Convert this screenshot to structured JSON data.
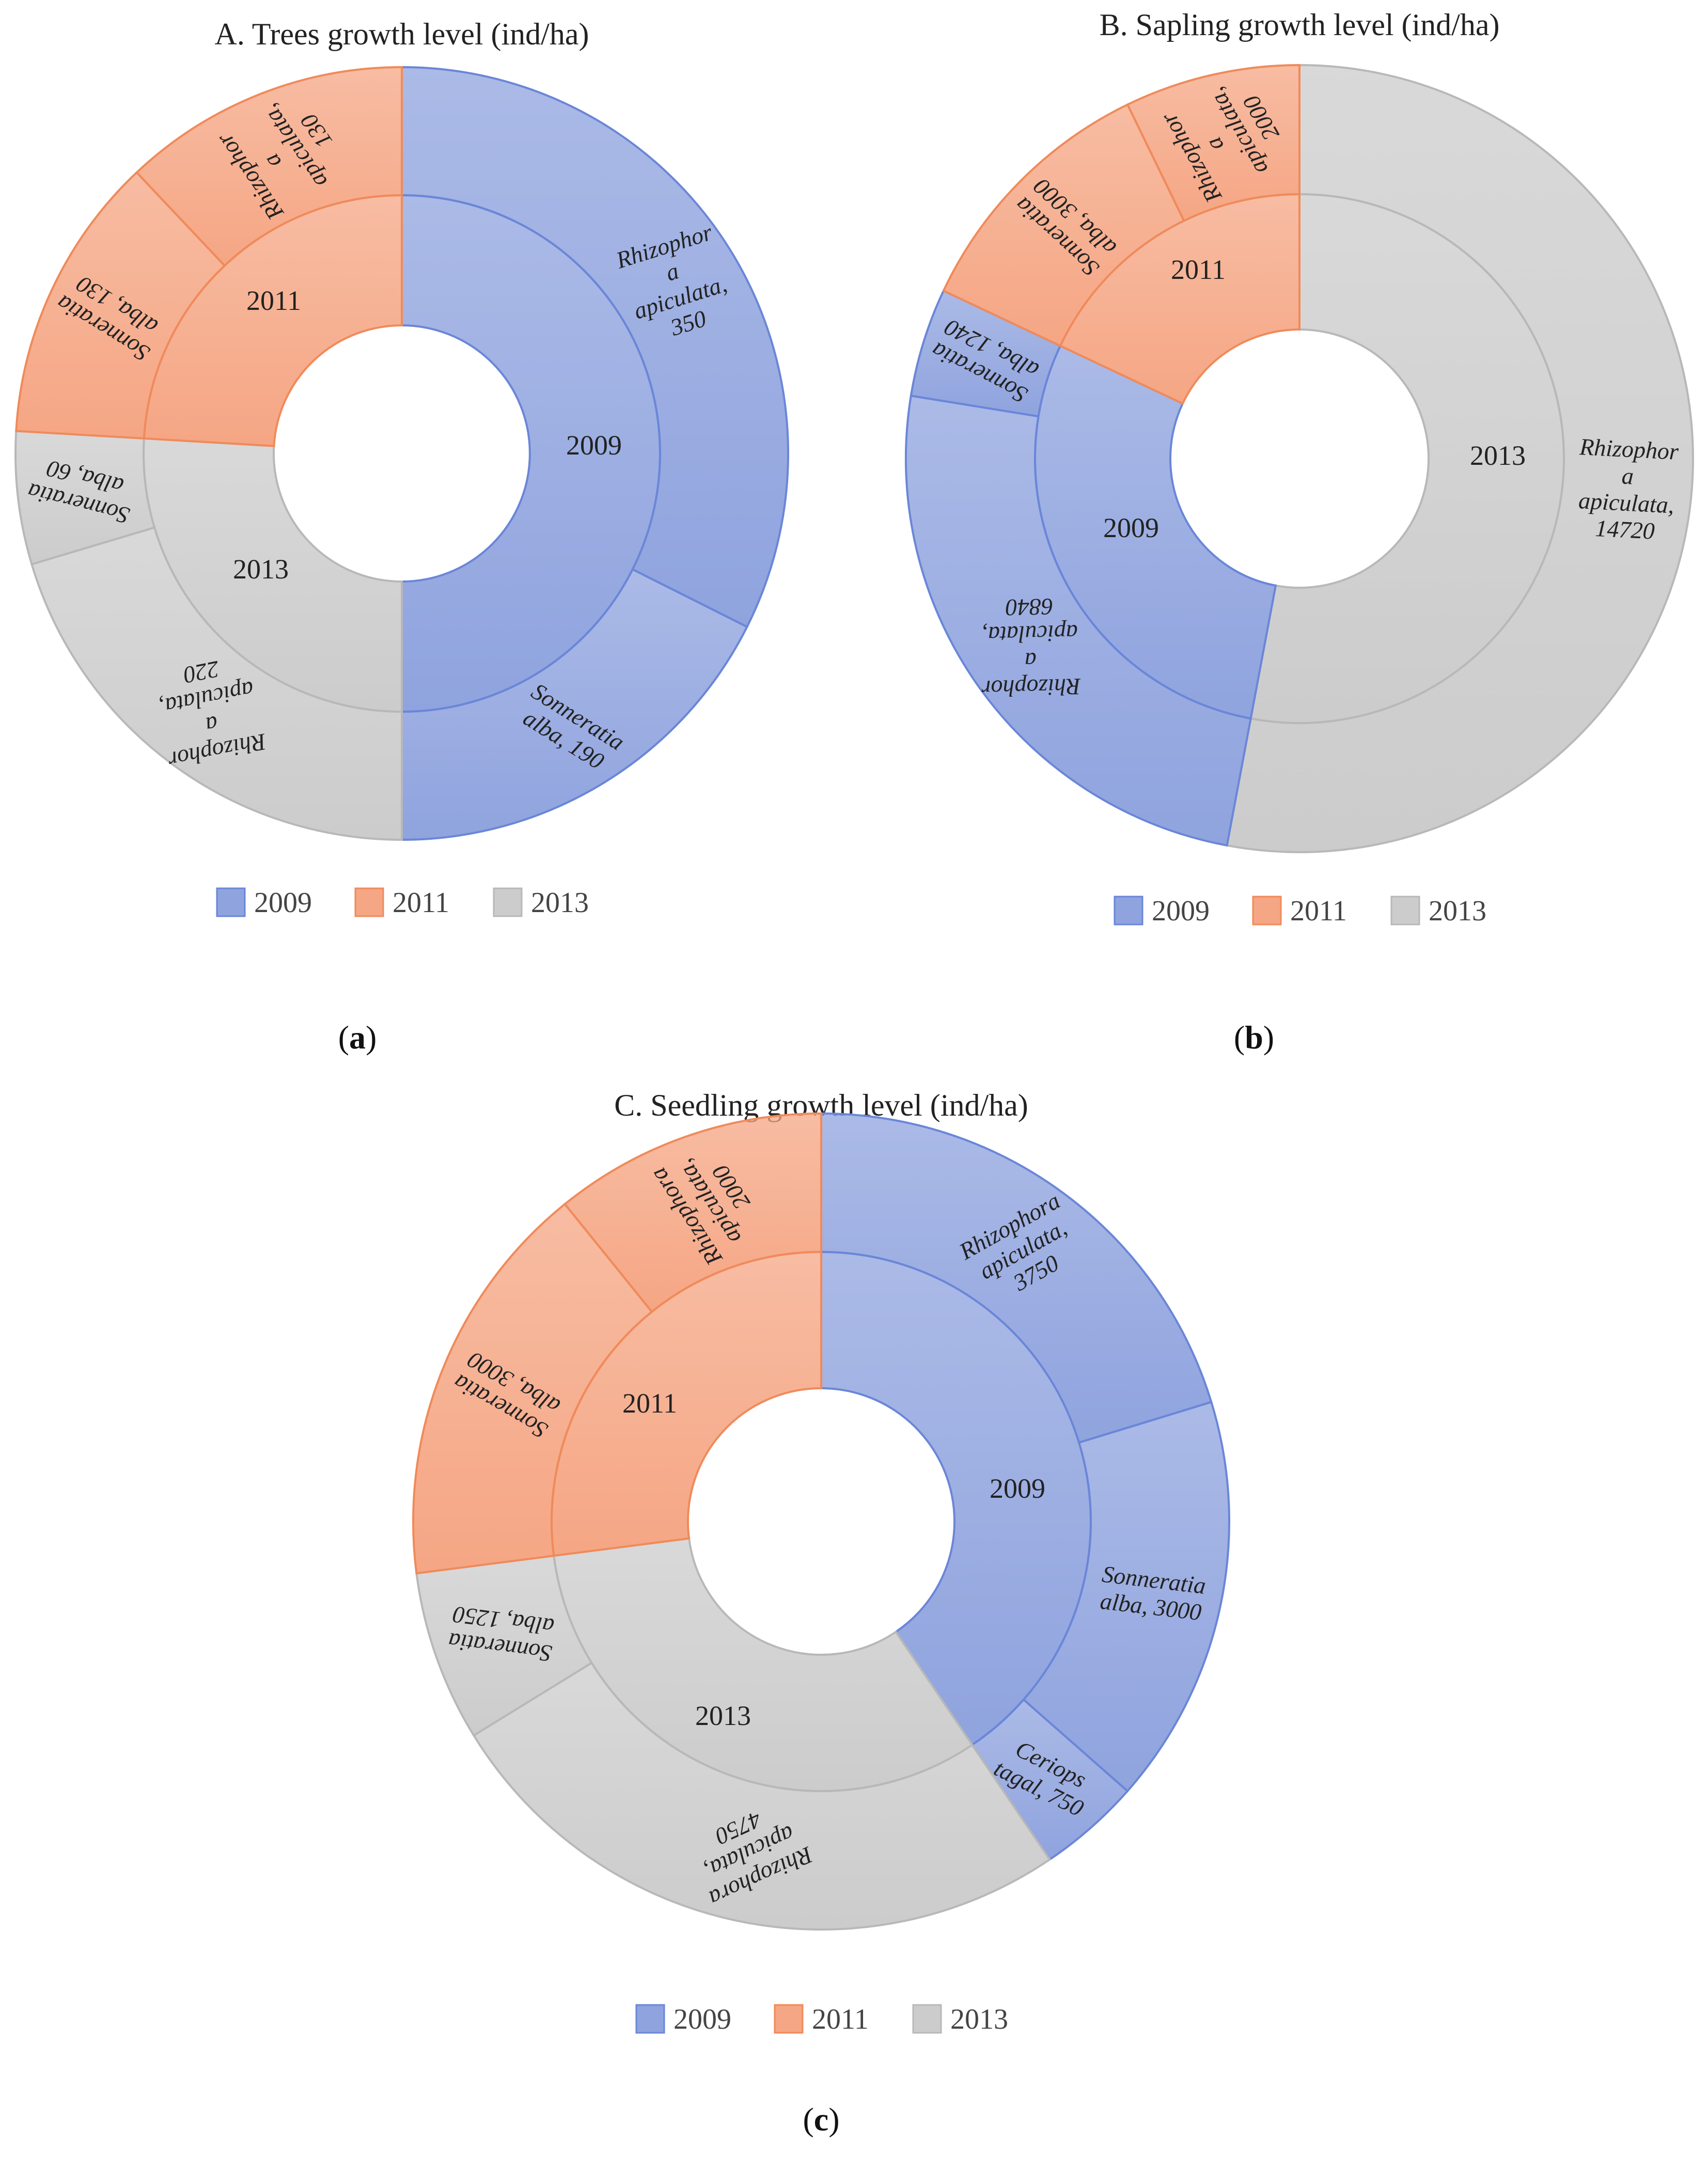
{
  "colors": {
    "2009": "#8fa3de",
    "2011": "#f5a684",
    "2013": "#cccccc",
    "2009_edge": "#6a86d8",
    "2011_edge": "#f08a5a",
    "2013_edge": "#b8b8b8"
  },
  "panels": [
    {
      "label_open": "(",
      "label_letter": "a",
      "label_close": ")"
    },
    {
      "label_open": "(",
      "label_letter": "b",
      "label_close": ")"
    },
    {
      "label_open": "(",
      "label_letter": "c",
      "label_close": ")"
    }
  ],
  "chart_data": [
    {
      "type": "sunburst",
      "title": "A. Trees growth level (ind/ha)",
      "legend": [
        "2009",
        "2011",
        "2013"
      ],
      "rings": [
        {
          "year": "2009",
          "total": 540,
          "children": [
            {
              "name": "Rhizophora apiculata",
              "value": 350,
              "label_lines": [
                "Rhizophor",
                "a",
                "apiculata,",
                "350"
              ]
            },
            {
              "name": "Sonneratia alba",
              "value": 190,
              "label_lines": [
                "Sonneratia",
                "alba, 190"
              ]
            }
          ]
        },
        {
          "year": "2013",
          "total": 280,
          "children": [
            {
              "name": "Rhizophora apiculata",
              "value": 220,
              "label_lines": [
                "Rhizophor",
                "a",
                "apiculata,",
                "220"
              ]
            },
            {
              "name": "Sonneratia alba",
              "value": 60,
              "label_lines": [
                "Sonneratia",
                "alba, 60"
              ]
            }
          ]
        },
        {
          "year": "2011",
          "total": 260,
          "children": [
            {
              "name": "Sonneratia alba",
              "value": 130,
              "label_lines": [
                "Sonneratia",
                "alba, 130"
              ]
            },
            {
              "name": "Rhizophora apiculata",
              "value": 130,
              "label_lines": [
                "Rhizophor",
                "a",
                "apiculata,",
                "130"
              ]
            }
          ]
        }
      ]
    },
    {
      "type": "sunburst",
      "title": "B. Sapling growth level (ind/ha)",
      "legend": [
        "2009",
        "2011",
        "2013"
      ],
      "rings": [
        {
          "year": "2013",
          "total": 14720,
          "children": [
            {
              "name": "Rhizophora apiculata",
              "value": 14720,
              "label_lines": [
                "Rhizophor",
                "a",
                "apiculata,",
                "14720"
              ]
            }
          ]
        },
        {
          "year": "2009",
          "total": 8080,
          "children": [
            {
              "name": "Rhizophora apiculata",
              "value": 6840,
              "label_lines": [
                "Rhizophor",
                "a",
                "apiculata,",
                "6840"
              ]
            },
            {
              "name": "Sonneratia alba",
              "value": 1240,
              "label_lines": [
                "Sonneratia",
                "alba, 1240"
              ]
            }
          ]
        },
        {
          "year": "2011",
          "total": 5000,
          "children": [
            {
              "name": "Sonneratia alba",
              "value": 3000,
              "label_lines": [
                "Sonneratia",
                "alba, 3000"
              ]
            },
            {
              "name": "Rhizophora apiculata",
              "value": 2000,
              "label_lines": [
                "Rhizophor",
                "a",
                "apiculata,",
                "2000"
              ]
            }
          ]
        }
      ]
    },
    {
      "type": "sunburst",
      "title": "C. Seedling growth level (ind/ha)",
      "legend": [
        "2009",
        "2011",
        "2013"
      ],
      "rings": [
        {
          "year": "2009",
          "total": 7500,
          "children": [
            {
              "name": "Rhizophora apiculata",
              "value": 3750,
              "label_lines": [
                "Rhizophora",
                "apiculata,",
                "3750"
              ]
            },
            {
              "name": "Sonneratia alba",
              "value": 3000,
              "label_lines": [
                "Sonneratia",
                "alba, 3000"
              ]
            },
            {
              "name": "Ceriops tagal",
              "value": 750,
              "label_lines": [
                "Ceriops",
                "tagal, 750"
              ]
            }
          ]
        },
        {
          "year": "2013",
          "total": 6000,
          "children": [
            {
              "name": "Rhizophora apiculata",
              "value": 4750,
              "label_lines": [
                "Rhizophora",
                "apiculata,",
                "4750"
              ]
            },
            {
              "name": "Sonneratia alba",
              "value": 1250,
              "label_lines": [
                "Sonneratia",
                "alba, 1250"
              ]
            }
          ]
        },
        {
          "year": "2011",
          "total": 5000,
          "children": [
            {
              "name": "Sonneratia alba",
              "value": 3000,
              "label_lines": [
                "Sonneratia",
                "alba, 3000"
              ]
            },
            {
              "name": "Rhizophora apiculata",
              "value": 2000,
              "label_lines": [
                "Rhizophora",
                "apiculata,",
                "2000"
              ]
            }
          ]
        }
      ]
    }
  ]
}
